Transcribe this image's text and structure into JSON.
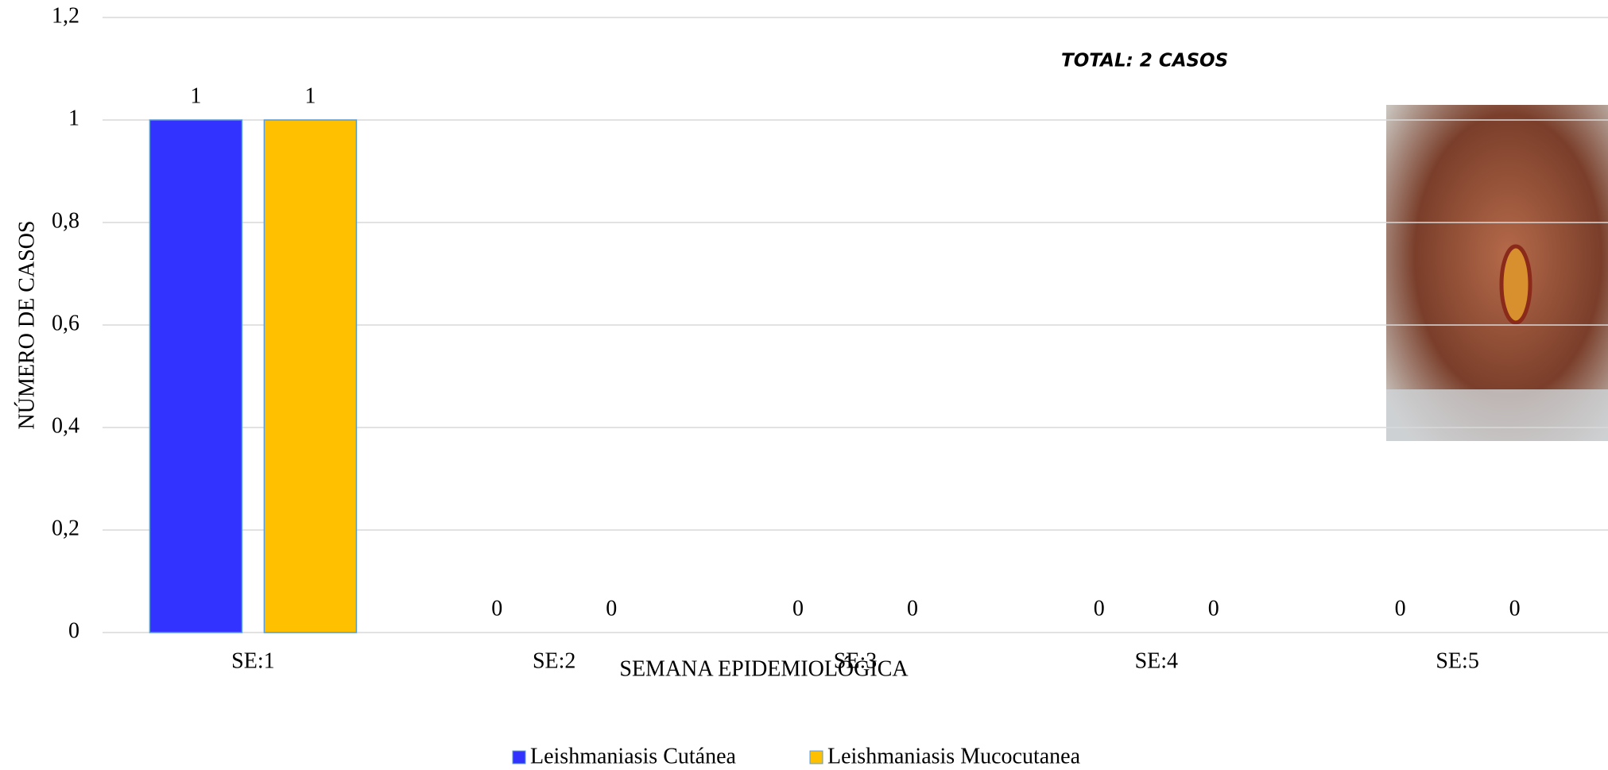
{
  "chart_data": {
    "type": "bar",
    "annotation": "TOTAL: 2 CASOS",
    "x_label": "SEMANA EPIDEMIOLÓGICA",
    "y_label": "NÚMERO DE CASOS",
    "categories": [
      "SE:1",
      "SE:2",
      "SE:3",
      "SE:4",
      "SE:5"
    ],
    "series": [
      {
        "name": "Leishmaniasis Cutánea",
        "color": "#3333ff",
        "values": [
          1,
          0,
          0,
          0,
          0
        ]
      },
      {
        "name": "Leishmaniasis Mucocutanea",
        "color": "#ffc000",
        "values": [
          1,
          0,
          0,
          0,
          0
        ]
      }
    ],
    "ylim": [
      0,
      1.2
    ],
    "yticks": [
      0,
      {
        "value": 0.2,
        "label": "0,2"
      },
      {
        "value": 0.4,
        "label": "0,4"
      },
      {
        "value": 0.6,
        "label": "0,6"
      },
      {
        "value": 0.8,
        "label": "0,8"
      },
      1,
      {
        "value": 1.2,
        "label": "1,2"
      }
    ],
    "grid": true
  }
}
